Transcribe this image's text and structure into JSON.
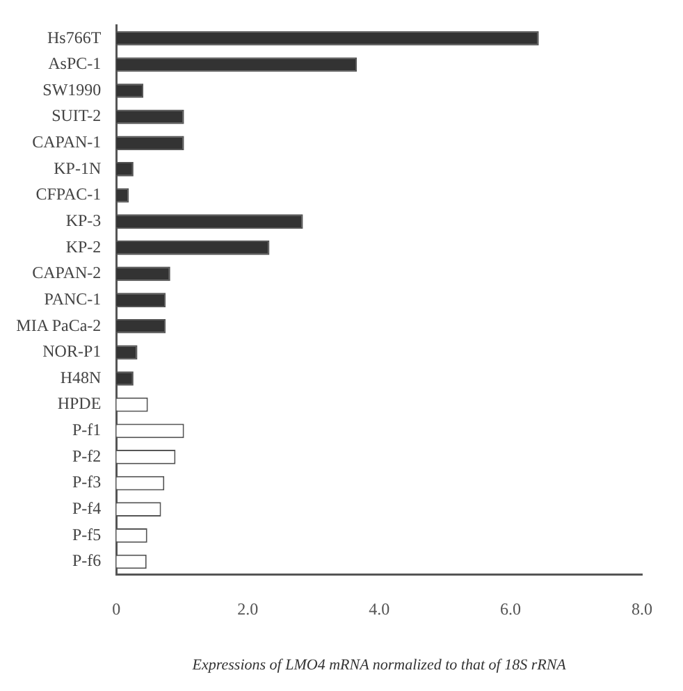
{
  "chart_data": {
    "type": "bar",
    "orientation": "horizontal",
    "xlabel": "Expressions of LMO4 mRNA normalized to that of 18S rRNA",
    "categories": [
      "Hs766T",
      "AsPC-1",
      "SW1990",
      "SUIT-2",
      "CAPAN-1",
      "KP-1N",
      "CFPAC-1",
      "KP-3",
      "KP-2",
      "CAPAN-2",
      "PANC-1",
      "MIA PaCa-2",
      "NOR-P1",
      "H48N",
      "HPDE",
      "P-f1",
      "P-f2",
      "P-f3",
      "P-f4",
      "P-f5",
      "P-f6"
    ],
    "values": [
      6.43,
      3.66,
      0.41,
      1.03,
      1.03,
      0.26,
      0.19,
      2.84,
      2.33,
      0.82,
      0.75,
      0.75,
      0.32,
      0.26,
      0.48,
      1.03,
      0.9,
      0.73,
      0.68,
      0.47,
      0.46
    ],
    "colors": [
      "#333333",
      "#333333",
      "#333333",
      "#333333",
      "#333333",
      "#333333",
      "#333333",
      "#333333",
      "#333333",
      "#333333",
      "#333333",
      "#333333",
      "#333333",
      "#333333",
      "#ffffff",
      "#ffffff",
      "#ffffff",
      "#ffffff",
      "#ffffff",
      "#ffffff",
      "#ffffff"
    ],
    "xlim": [
      0,
      8
    ],
    "xticks": [
      0,
      {
        "value": 2,
        "label": "2.0"
      },
      {
        "value": 4,
        "label": "4.0"
      },
      {
        "value": 6,
        "label": "6.0"
      },
      {
        "value": 8,
        "label": "8.0"
      }
    ],
    "grid": false,
    "legend": false
  }
}
